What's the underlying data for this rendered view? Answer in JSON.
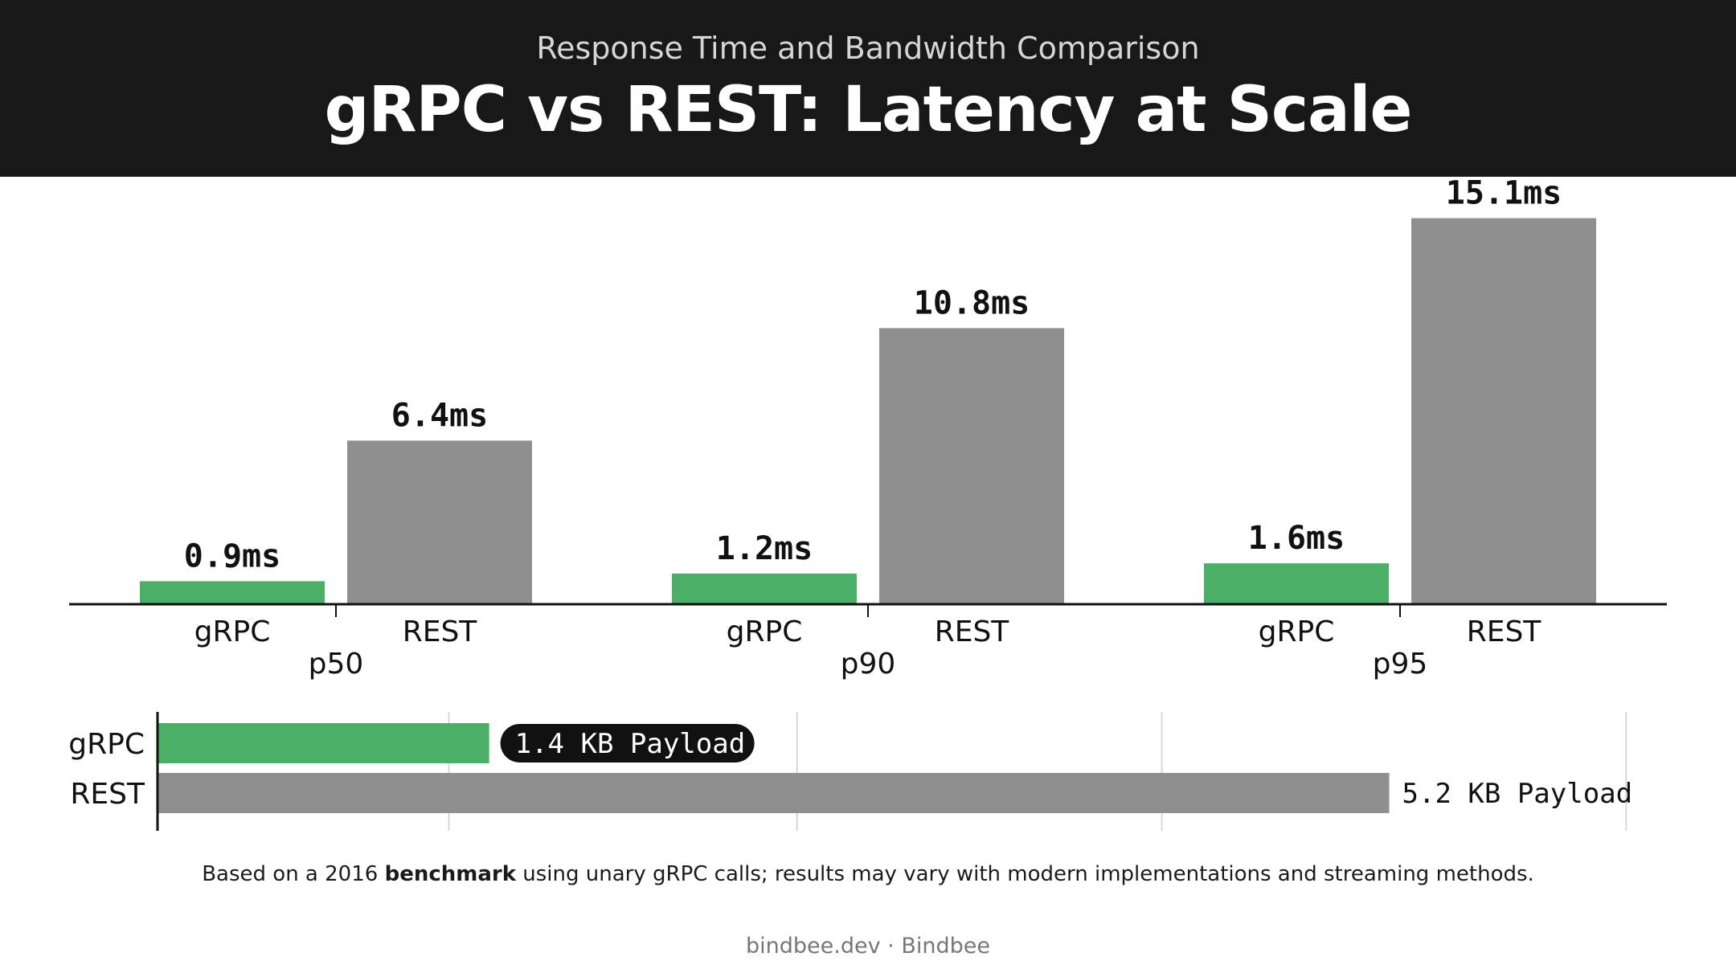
{
  "header": {
    "subtitle": "Response Time and Bandwidth Comparison",
    "title": "gRPC vs REST: Latency at Scale"
  },
  "colors": {
    "grpc": "#4caf68",
    "rest": "#8f8f8f",
    "header_bg": "#181818",
    "badge_bg": "#111111"
  },
  "chart_data": [
    {
      "type": "bar",
      "categories": [
        "p50",
        "p90",
        "p95"
      ],
      "series": [
        {
          "name": "gRPC",
          "values": [
            0.9,
            1.2,
            1.6
          ],
          "labels": [
            "0.9ms",
            "1.2ms",
            "1.6ms"
          ]
        },
        {
          "name": "REST",
          "values": [
            6.4,
            10.8,
            15.1
          ],
          "labels": [
            "6.4ms",
            "10.8ms",
            "15.1ms"
          ]
        }
      ],
      "ylim": [
        0,
        16.5
      ],
      "grid": false
    },
    {
      "type": "bar",
      "orientation": "horizontal",
      "categories": [
        "gRPC",
        "REST"
      ],
      "values": [
        1.4,
        5.2
      ],
      "labels": [
        "1.4 KB Payload",
        "5.2 KB Payload"
      ],
      "xlim": [
        0,
        6.25
      ],
      "grid": true
    }
  ],
  "footnote": {
    "pre": "Based on a 2016 ",
    "bold": "benchmark",
    "post": " using unary gRPC calls; results may vary with modern implementations and streaming methods."
  },
  "credit": "bindbee.dev · Bindbee"
}
